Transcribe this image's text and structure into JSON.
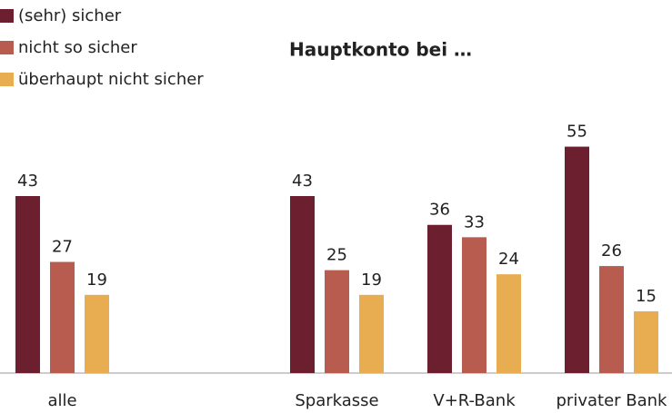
{
  "chart_data": {
    "type": "bar",
    "title": "Hauptkonto bei …",
    "categories": [
      "alle",
      null,
      "Sparkasse",
      "V+R-Bank",
      "privater Bank"
    ],
    "series": [
      {
        "name": "(sehr) sicher",
        "color": "#6b1f2f",
        "values": [
          43,
          null,
          43,
          36,
          55
        ]
      },
      {
        "name": "nicht so sicher",
        "color": "#b85c4f",
        "values": [
          27,
          null,
          25,
          33,
          26
        ]
      },
      {
        "name": "überhaupt nicht sicher",
        "color": "#e8ad50",
        "values": [
          19,
          null,
          19,
          24,
          15
        ]
      }
    ],
    "legend": "top-left"
  }
}
